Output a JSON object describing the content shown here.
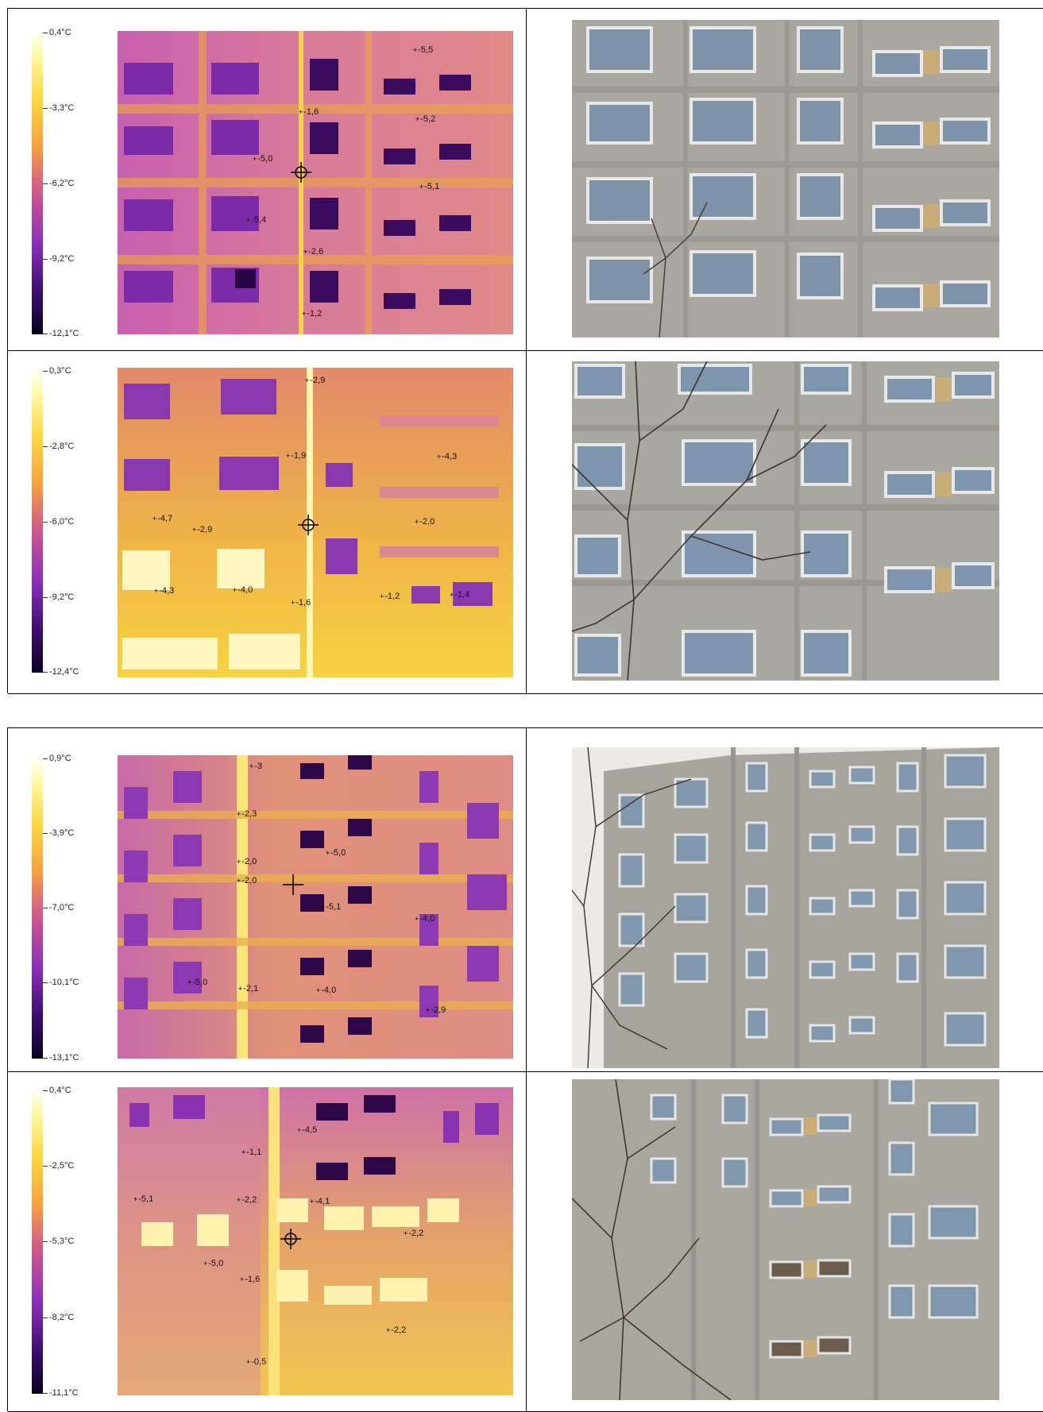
{
  "panels": [
    {
      "scale": [
        "0,4°C",
        "-3,3°C",
        "-6,2°C",
        "-9,2°C",
        "-12,1°C"
      ],
      "temps": [
        "-5,5",
        "-1,6",
        "-5,2",
        "-5,0",
        "-5,1",
        "-5,4",
        "-2,6",
        "-1,2"
      ]
    },
    {
      "scale": [
        "0,3°C",
        "-2,8°C",
        "-6,0°C",
        "-9,2°C",
        "-12,4°C"
      ],
      "temps": [
        "-2,9",
        "-1,9",
        "-4,3",
        "-4,7",
        "-2,9",
        "-2,0",
        "-4,3",
        "-4,0",
        "-1,6",
        "-1,2",
        "-1,4"
      ]
    },
    {
      "scale": [
        "0,9°C",
        "-3,9°C",
        "-7,0°C",
        "-10,1°C",
        "-13,1°C"
      ],
      "temps": [
        "-3",
        "-2,3",
        "-2,0",
        "-5,0",
        "-2,0",
        "-5,1",
        "-4,0",
        "-5,0",
        "-2,1",
        "-4,0",
        "-2,9"
      ]
    },
    {
      "scale": [
        "0,4°C",
        "-2,5°C",
        "-5,3°C",
        "-8,2°C",
        "-11,1°C"
      ],
      "temps": [
        "-4,5",
        "-1,1",
        "-5,1",
        "-2,2",
        "-4,1",
        "-2,2",
        "-5,0",
        "-1,6",
        "-2,2",
        "-0,5"
      ]
    }
  ]
}
